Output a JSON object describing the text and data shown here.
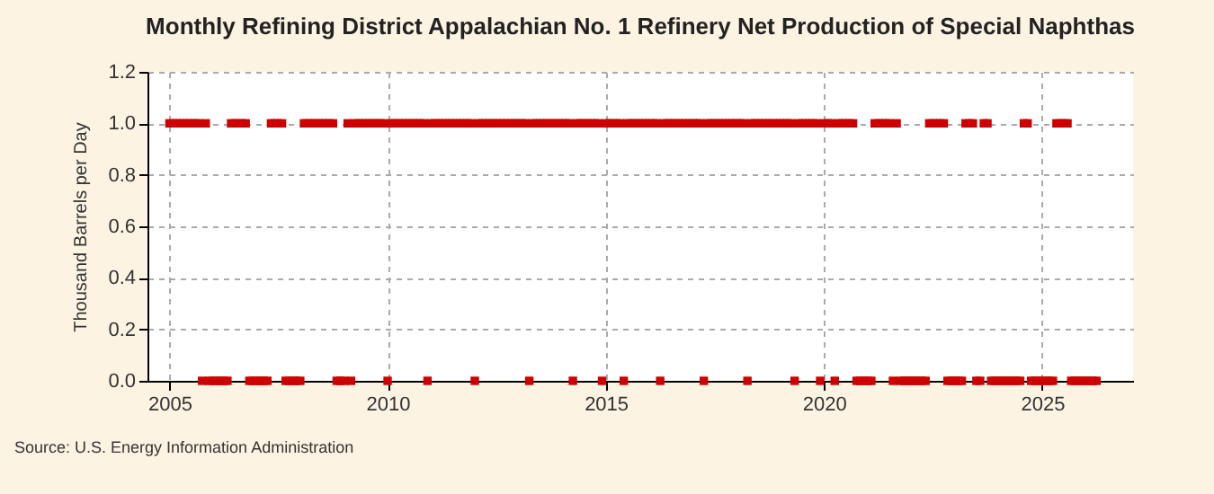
{
  "chart_data": {
    "type": "scatter",
    "title": "Monthly Refining District Appalachian No. 1 Refinery Net Production of Special Naphthas",
    "ylabel": "Thousand Barrels per Day",
    "annotations": [
      "Source: U.S. Energy Information Administration"
    ],
    "x": [
      "2005-01",
      "2005-02",
      "2005-03",
      "2005-04",
      "2005-05",
      "2005-06",
      "2005-07",
      "2005-08",
      "2005-09",
      "2005-10",
      "2005-11",
      "2005-12",
      "2006-01",
      "2006-02",
      "2006-03",
      "2006-04",
      "2006-05",
      "2006-06",
      "2006-07",
      "2006-08",
      "2006-09",
      "2006-10",
      "2006-11",
      "2006-12",
      "2007-01",
      "2007-02",
      "2007-03",
      "2007-04",
      "2007-05",
      "2007-06",
      "2007-07",
      "2007-08",
      "2007-09",
      "2007-10",
      "2007-11",
      "2007-12",
      "2008-01",
      "2008-02",
      "2008-03",
      "2008-04",
      "2008-05",
      "2008-06",
      "2008-07",
      "2008-08",
      "2008-09",
      "2008-10",
      "2008-11",
      "2008-12",
      "2009-01",
      "2009-02",
      "2009-03",
      "2009-04",
      "2009-05",
      "2009-06",
      "2009-07",
      "2009-08",
      "2009-09",
      "2009-10",
      "2009-11",
      "2009-12",
      "2010-01",
      "2010-02",
      "2010-03",
      "2010-04",
      "2010-05",
      "2010-06",
      "2010-07",
      "2010-08",
      "2010-09",
      "2010-10",
      "2010-11",
      "2010-12",
      "2011-01",
      "2011-02",
      "2011-03",
      "2011-04",
      "2011-05",
      "2011-06",
      "2011-07",
      "2011-08",
      "2011-09",
      "2011-10",
      "2011-11",
      "2011-12",
      "2012-01",
      "2012-02",
      "2012-03",
      "2012-04",
      "2012-05",
      "2012-06",
      "2012-07",
      "2012-08",
      "2012-09",
      "2012-10",
      "2012-11",
      "2012-12",
      "2013-01",
      "2013-02",
      "2013-03",
      "2013-04",
      "2013-05",
      "2013-06",
      "2013-07",
      "2013-08",
      "2013-09",
      "2013-10",
      "2013-11",
      "2013-12",
      "2014-01",
      "2014-02",
      "2014-03",
      "2014-04",
      "2014-05",
      "2014-06",
      "2014-07",
      "2014-08",
      "2014-09",
      "2014-10",
      "2014-11",
      "2014-12",
      "2015-01",
      "2015-02",
      "2015-03",
      "2015-04",
      "2015-05",
      "2015-06",
      "2015-07",
      "2015-08",
      "2015-09",
      "2015-10",
      "2015-11",
      "2015-12",
      "2016-01",
      "2016-02",
      "2016-03",
      "2016-04",
      "2016-05",
      "2016-06",
      "2016-07",
      "2016-08",
      "2016-09",
      "2016-10",
      "2016-11",
      "2016-12",
      "2017-01",
      "2017-02",
      "2017-03",
      "2017-04",
      "2017-05",
      "2017-06",
      "2017-07",
      "2017-08",
      "2017-09",
      "2017-10",
      "2017-11",
      "2017-12",
      "2018-01",
      "2018-02",
      "2018-03",
      "2018-04",
      "2018-05",
      "2018-06",
      "2018-07",
      "2018-08",
      "2018-09",
      "2018-10",
      "2018-11",
      "2018-12",
      "2019-01",
      "2019-02",
      "2019-03",
      "2019-04",
      "2019-05",
      "2019-06",
      "2019-07",
      "2019-08",
      "2019-09",
      "2019-10",
      "2019-11",
      "2019-12",
      "2020-01",
      "2020-02",
      "2020-03",
      "2020-04",
      "2020-05",
      "2020-06",
      "2020-07",
      "2020-08",
      "2020-09",
      "2020-10",
      "2020-11",
      "2020-12",
      "2021-01",
      "2021-02",
      "2021-03",
      "2021-04",
      "2021-05",
      "2021-06",
      "2021-07",
      "2021-08",
      "2021-09",
      "2021-10",
      "2021-11",
      "2021-12",
      "2022-01",
      "2022-02",
      "2022-03",
      "2022-04",
      "2022-05",
      "2022-06",
      "2022-07",
      "2022-08",
      "2022-09",
      "2022-10",
      "2022-11",
      "2022-12",
      "2023-01",
      "2023-02",
      "2023-03",
      "2023-04",
      "2023-05",
      "2023-06",
      "2023-07",
      "2023-08",
      "2023-09",
      "2023-10",
      "2023-11",
      "2023-12",
      "2024-01",
      "2024-02",
      "2024-03",
      "2024-04",
      "2024-05",
      "2024-06",
      "2024-07",
      "2024-08",
      "2024-09",
      "2024-10",
      "2024-11",
      "2024-12",
      "2025-01",
      "2025-02",
      "2025-03",
      "2025-04",
      "2025-05",
      "2025-06",
      "2025-07",
      "2025-08",
      "2025-09",
      "2025-10",
      "2025-11",
      "2025-12",
      "2026-01",
      "2026-02",
      "2026-03",
      "2026-04"
    ],
    "series": [
      {
        "color": "#cc0000",
        "values": [
          1,
          1,
          1,
          1,
          1,
          1,
          1,
          1,
          1,
          0,
          1,
          0,
          0,
          0,
          0,
          0,
          0,
          1,
          1,
          1,
          1,
          1,
          0,
          0,
          0,
          0,
          0,
          0,
          1,
          1,
          1,
          1,
          0,
          0,
          0,
          0,
          0,
          1,
          1,
          1,
          1,
          1,
          1,
          1,
          1,
          1,
          0,
          0,
          0,
          1,
          0,
          1,
          1,
          1,
          1,
          1,
          1,
          1,
          1,
          1,
          0,
          1,
          1,
          1,
          1,
          1,
          1,
          1,
          1,
          1,
          1,
          0,
          1,
          1,
          1,
          1,
          1,
          1,
          1,
          1,
          1,
          1,
          1,
          1,
          0,
          1,
          1,
          1,
          1,
          1,
          1,
          1,
          1,
          1,
          1,
          1,
          1,
          1,
          1,
          0,
          1,
          1,
          1,
          1,
          1,
          1,
          1,
          1,
          1,
          1,
          1,
          0,
          1,
          1,
          1,
          1,
          1,
          1,
          1,
          0,
          1,
          1,
          1,
          1,
          1,
          0,
          1,
          1,
          1,
          1,
          1,
          1,
          1,
          1,
          1,
          0,
          1,
          1,
          1,
          1,
          1,
          1,
          1,
          1,
          1,
          1,
          1,
          0,
          1,
          1,
          1,
          1,
          1,
          1,
          1,
          1,
          1,
          1,
          1,
          0,
          1,
          1,
          1,
          1,
          1,
          1,
          1,
          1,
          1,
          1,
          1,
          1,
          0,
          1,
          1,
          1,
          1,
          1,
          1,
          0,
          1,
          1,
          1,
          0,
          1,
          1,
          1,
          1,
          1,
          0,
          0,
          0,
          0,
          0,
          1,
          1,
          1,
          1,
          1,
          0,
          1,
          0,
          0,
          0,
          0,
          0,
          0,
          0,
          0,
          1,
          1,
          1,
          1,
          1,
          0,
          0,
          0,
          0,
          0,
          1,
          1,
          1,
          0,
          0,
          1,
          1,
          0,
          0,
          0,
          0,
          0,
          0,
          0,
          0,
          0,
          1,
          1,
          0,
          0,
          0,
          0,
          0,
          0,
          0,
          1,
          1,
          1,
          1,
          0,
          0,
          0,
          0,
          0,
          0,
          0,
          0
        ]
      }
    ],
    "marker": "square",
    "xlim": [
      "2004-07",
      "2027-02"
    ],
    "xticks": [
      "2005",
      "2010",
      "2015",
      "2020",
      "2025"
    ],
    "ylim": [
      0,
      1.2
    ],
    "yticks": [
      {
        "value": 0,
        "label": "0.0"
      },
      {
        "value": 0.2,
        "label": "0.2"
      },
      {
        "value": 0.4,
        "label": "0.4"
      },
      {
        "value": 0.6,
        "label": "0.6"
      },
      {
        "value": 0.8,
        "label": "0.8"
      },
      {
        "value": 1,
        "label": "1.0"
      },
      {
        "value": 1.2,
        "label": "1.2"
      }
    ],
    "grid": true
  }
}
